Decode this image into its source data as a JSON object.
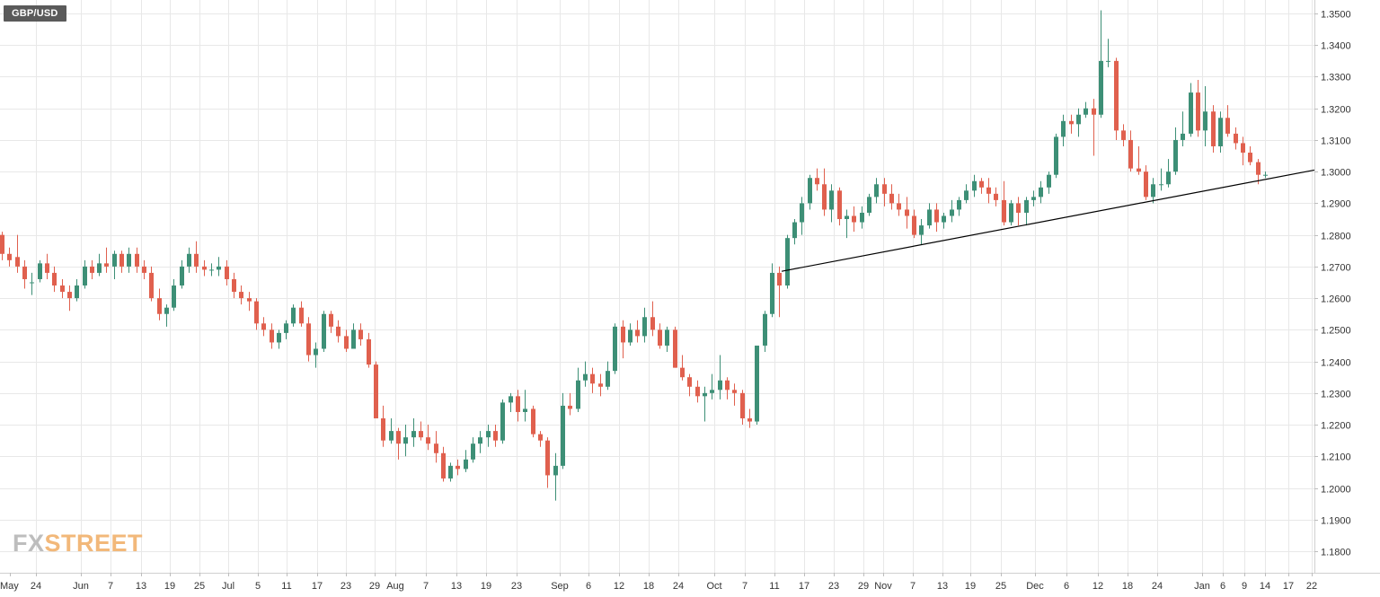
{
  "chart_data": {
    "type": "candlestick",
    "symbol": "GBP/USD",
    "watermark": {
      "part1": "FX",
      "part2": "STREET"
    },
    "y_axis": {
      "range": [
        1.172,
        1.3535
      ],
      "ticks": [
        "1.1800",
        "1.1900",
        "1.2000",
        "1.2100",
        "1.2200",
        "1.2300",
        "1.2400",
        "1.2500",
        "1.2600",
        "1.2700",
        "1.2800",
        "1.2900",
        "1.3000",
        "1.3100",
        "1.3200",
        "1.3300",
        "1.3400",
        "1.3500"
      ]
    },
    "x_axis": {
      "labels": [
        "May",
        "24",
        "Jun",
        "7",
        "13",
        "19",
        "25",
        "Jul",
        "5",
        "11",
        "17",
        "23",
        "29",
        "Aug",
        "7",
        "13",
        "19",
        "23",
        "Sep",
        "6",
        "12",
        "18",
        "24",
        "Oct",
        "7",
        "11",
        "17",
        "23",
        "29",
        "Nov",
        "7",
        "13",
        "19",
        "25",
        "Dec",
        "6",
        "12",
        "18",
        "24",
        "Jan",
        "6",
        "9",
        "14",
        "17",
        "22"
      ]
    },
    "colors": {
      "up": "#3d8f76",
      "down": "#e0604e",
      "grid": "#e8e8e8",
      "axis_text": "#333333",
      "trendline": "#000000"
    },
    "grid": true,
    "trendline": {
      "from": [
        "Oct 12",
        1.2685
      ],
      "to": [
        "Jan 22",
        1.3005
      ]
    },
    "candles": [
      [
        1.28,
        1.281,
        1.272,
        1.274
      ],
      [
        1.274,
        1.276,
        1.27,
        1.272
      ],
      [
        1.273,
        1.28,
        1.268,
        1.27
      ],
      [
        1.27,
        1.272,
        1.263,
        1.266
      ],
      [
        1.265,
        1.268,
        1.261,
        1.265
      ],
      [
        1.266,
        1.272,
        1.265,
        1.271
      ],
      [
        1.271,
        1.274,
        1.266,
        1.268
      ],
      [
        1.268,
        1.27,
        1.262,
        1.264
      ],
      [
        1.264,
        1.266,
        1.26,
        1.262
      ],
      [
        1.262,
        1.264,
        1.256,
        1.26
      ],
      [
        1.26,
        1.266,
        1.259,
        1.264
      ],
      [
        1.264,
        1.272,
        1.263,
        1.27
      ],
      [
        1.27,
        1.272,
        1.266,
        1.268
      ],
      [
        1.268,
        1.274,
        1.267,
        1.271
      ],
      [
        1.271,
        1.276,
        1.268,
        1.27
      ],
      [
        1.27,
        1.275,
        1.266,
        1.274
      ],
      [
        1.274,
        1.275,
        1.268,
        1.27
      ],
      [
        1.27,
        1.276,
        1.268,
        1.274
      ],
      [
        1.274,
        1.276,
        1.268,
        1.27
      ],
      [
        1.27,
        1.272,
        1.266,
        1.268
      ],
      [
        1.268,
        1.27,
        1.259,
        1.26
      ],
      [
        1.26,
        1.263,
        1.253,
        1.255
      ],
      [
        1.255,
        1.258,
        1.251,
        1.257
      ],
      [
        1.257,
        1.266,
        1.256,
        1.264
      ],
      [
        1.264,
        1.272,
        1.263,
        1.27
      ],
      [
        1.27,
        1.276,
        1.268,
        1.274
      ],
      [
        1.274,
        1.278,
        1.268,
        1.27
      ],
      [
        1.27,
        1.272,
        1.267,
        1.269
      ],
      [
        1.269,
        1.271,
        1.267,
        1.269
      ],
      [
        1.269,
        1.273,
        1.267,
        1.27
      ],
      [
        1.27,
        1.272,
        1.264,
        1.266
      ],
      [
        1.266,
        1.268,
        1.26,
        1.262
      ],
      [
        1.262,
        1.264,
        1.258,
        1.26
      ],
      [
        1.26,
        1.262,
        1.256,
        1.259
      ],
      [
        1.259,
        1.26,
        1.25,
        1.252
      ],
      [
        1.252,
        1.254,
        1.248,
        1.25
      ],
      [
        1.25,
        1.252,
        1.244,
        1.246
      ],
      [
        1.246,
        1.25,
        1.244,
        1.249
      ],
      [
        1.249,
        1.253,
        1.247,
        1.252
      ],
      [
        1.252,
        1.258,
        1.251,
        1.257
      ],
      [
        1.257,
        1.259,
        1.251,
        1.252
      ],
      [
        1.252,
        1.254,
        1.24,
        1.242
      ],
      [
        1.242,
        1.246,
        1.238,
        1.244
      ],
      [
        1.244,
        1.256,
        1.243,
        1.255
      ],
      [
        1.255,
        1.256,
        1.249,
        1.251
      ],
      [
        1.251,
        1.253,
        1.246,
        1.248
      ],
      [
        1.248,
        1.25,
        1.243,
        1.244
      ],
      [
        1.244,
        1.252,
        1.244,
        1.25
      ],
      [
        1.25,
        1.252,
        1.245,
        1.247
      ],
      [
        1.247,
        1.249,
        1.238,
        1.239
      ],
      [
        1.239,
        1.24,
        1.222,
        1.222
      ],
      [
        1.222,
        1.226,
        1.213,
        1.215
      ],
      [
        1.215,
        1.222,
        1.214,
        1.218
      ],
      [
        1.218,
        1.219,
        1.209,
        1.214
      ],
      [
        1.214,
        1.22,
        1.21,
        1.216
      ],
      [
        1.216,
        1.222,
        1.213,
        1.218
      ],
      [
        1.218,
        1.221,
        1.215,
        1.216
      ],
      [
        1.216,
        1.22,
        1.212,
        1.214
      ],
      [
        1.214,
        1.218,
        1.208,
        1.211
      ],
      [
        1.211,
        1.213,
        1.202,
        1.203
      ],
      [
        1.203,
        1.208,
        1.202,
        1.207
      ],
      [
        1.207,
        1.209,
        1.204,
        1.206
      ],
      [
        1.206,
        1.212,
        1.205,
        1.209
      ],
      [
        1.209,
        1.216,
        1.208,
        1.214
      ],
      [
        1.214,
        1.218,
        1.211,
        1.216
      ],
      [
        1.216,
        1.22,
        1.213,
        1.218
      ],
      [
        1.218,
        1.22,
        1.213,
        1.215
      ],
      [
        1.215,
        1.228,
        1.214,
        1.227
      ],
      [
        1.227,
        1.23,
        1.224,
        1.229
      ],
      [
        1.229,
        1.231,
        1.221,
        1.224
      ],
      [
        1.224,
        1.231,
        1.221,
        1.225
      ],
      [
        1.225,
        1.226,
        1.216,
        1.217
      ],
      [
        1.217,
        1.218,
        1.213,
        1.215
      ],
      [
        1.215,
        1.216,
        1.2,
        1.204
      ],
      [
        1.204,
        1.211,
        1.196,
        1.207
      ],
      [
        1.207,
        1.23,
        1.206,
        1.226
      ],
      [
        1.226,
        1.23,
        1.223,
        1.225
      ],
      [
        1.225,
        1.238,
        1.224,
        1.234
      ],
      [
        1.234,
        1.24,
        1.232,
        1.236
      ],
      [
        1.236,
        1.238,
        1.23,
        1.233
      ],
      [
        1.233,
        1.236,
        1.229,
        1.232
      ],
      [
        1.232,
        1.24,
        1.231,
        1.237
      ],
      [
        1.237,
        1.252,
        1.236,
        1.251
      ],
      [
        1.251,
        1.253,
        1.241,
        1.246
      ],
      [
        1.246,
        1.252,
        1.245,
        1.25
      ],
      [
        1.25,
        1.253,
        1.246,
        1.248
      ],
      [
        1.248,
        1.257,
        1.246,
        1.254
      ],
      [
        1.254,
        1.259,
        1.248,
        1.25
      ],
      [
        1.25,
        1.252,
        1.244,
        1.245
      ],
      [
        1.245,
        1.251,
        1.243,
        1.25
      ],
      [
        1.25,
        1.251,
        1.238,
        1.238
      ],
      [
        1.238,
        1.242,
        1.234,
        1.235
      ],
      [
        1.235,
        1.236,
        1.229,
        1.232
      ],
      [
        1.232,
        1.234,
        1.227,
        1.229
      ],
      [
        1.229,
        1.232,
        1.221,
        1.23
      ],
      [
        1.23,
        1.236,
        1.228,
        1.231
      ],
      [
        1.231,
        1.242,
        1.228,
        1.234
      ],
      [
        1.234,
        1.235,
        1.228,
        1.231
      ],
      [
        1.231,
        1.233,
        1.226,
        1.23
      ],
      [
        1.23,
        1.231,
        1.22,
        1.222
      ],
      [
        1.222,
        1.225,
        1.219,
        1.221
      ],
      [
        1.221,
        1.245,
        1.22,
        1.245
      ],
      [
        1.245,
        1.256,
        1.243,
        1.255
      ],
      [
        1.255,
        1.271,
        1.254,
        1.268
      ],
      [
        1.268,
        1.27,
        1.254,
        1.264
      ],
      [
        1.264,
        1.28,
        1.263,
        1.279
      ],
      [
        1.279,
        1.285,
        1.277,
        1.284
      ],
      [
        1.284,
        1.292,
        1.28,
        1.29
      ],
      [
        1.29,
        1.299,
        1.288,
        1.298
      ],
      [
        1.298,
        1.301,
        1.294,
        1.296
      ],
      [
        1.296,
        1.301,
        1.286,
        1.288
      ],
      [
        1.288,
        1.296,
        1.284,
        1.294
      ],
      [
        1.294,
        1.295,
        1.283,
        1.285
      ],
      [
        1.285,
        1.288,
        1.279,
        1.286
      ],
      [
        1.286,
        1.289,
        1.281,
        1.284
      ],
      [
        1.284,
        1.289,
        1.282,
        1.287
      ],
      [
        1.287,
        1.293,
        1.286,
        1.292
      ],
      [
        1.292,
        1.298,
        1.29,
        1.296
      ],
      [
        1.296,
        1.298,
        1.289,
        1.293
      ],
      [
        1.293,
        1.296,
        1.288,
        1.29
      ],
      [
        1.29,
        1.293,
        1.286,
        1.288
      ],
      [
        1.288,
        1.292,
        1.282,
        1.286
      ],
      [
        1.286,
        1.288,
        1.279,
        1.28
      ],
      [
        1.28,
        1.285,
        1.277,
        1.283
      ],
      [
        1.283,
        1.29,
        1.282,
        1.288
      ],
      [
        1.288,
        1.29,
        1.281,
        1.284
      ],
      [
        1.284,
        1.287,
        1.282,
        1.286
      ],
      [
        1.286,
        1.291,
        1.284,
        1.288
      ],
      [
        1.288,
        1.292,
        1.286,
        1.291
      ],
      [
        1.291,
        1.296,
        1.29,
        1.294
      ],
      [
        1.294,
        1.299,
        1.292,
        1.297
      ],
      [
        1.297,
        1.298,
        1.293,
        1.295
      ],
      [
        1.295,
        1.298,
        1.29,
        1.293
      ],
      [
        1.293,
        1.295,
        1.289,
        1.291
      ],
      [
        1.291,
        1.297,
        1.283,
        1.284
      ],
      [
        1.284,
        1.291,
        1.283,
        1.29
      ],
      [
        1.29,
        1.292,
        1.283,
        1.287
      ],
      [
        1.287,
        1.292,
        1.283,
        1.291
      ],
      [
        1.291,
        1.294,
        1.289,
        1.292
      ],
      [
        1.292,
        1.297,
        1.29,
        1.295
      ],
      [
        1.295,
        1.3,
        1.293,
        1.299
      ],
      [
        1.299,
        1.312,
        1.298,
        1.311
      ],
      [
        1.311,
        1.318,
        1.308,
        1.316
      ],
      [
        1.316,
        1.318,
        1.312,
        1.315
      ],
      [
        1.315,
        1.32,
        1.311,
        1.318
      ],
      [
        1.318,
        1.322,
        1.317,
        1.32
      ],
      [
        1.32,
        1.323,
        1.305,
        1.318
      ],
      [
        1.318,
        1.351,
        1.317,
        1.335
      ],
      [
        1.335,
        1.342,
        1.333,
        1.335
      ],
      [
        1.335,
        1.336,
        1.31,
        1.313
      ],
      [
        1.313,
        1.315,
        1.308,
        1.31
      ],
      [
        1.31,
        1.313,
        1.3,
        1.301
      ],
      [
        1.301,
        1.308,
        1.299,
        1.3
      ],
      [
        1.3,
        1.302,
        1.291,
        1.292
      ],
      [
        1.292,
        1.298,
        1.29,
        1.296
      ],
      [
        1.296,
        1.301,
        1.294,
        1.296
      ],
      [
        1.296,
        1.304,
        1.295,
        1.3
      ],
      [
        1.3,
        1.314,
        1.299,
        1.31
      ],
      [
        1.31,
        1.319,
        1.308,
        1.312
      ],
      [
        1.312,
        1.328,
        1.311,
        1.325
      ],
      [
        1.325,
        1.329,
        1.311,
        1.313
      ],
      [
        1.313,
        1.327,
        1.308,
        1.319
      ],
      [
        1.319,
        1.321,
        1.306,
        1.308
      ],
      [
        1.308,
        1.319,
        1.306,
        1.317
      ],
      [
        1.317,
        1.321,
        1.311,
        1.312
      ],
      [
        1.312,
        1.314,
        1.307,
        1.309
      ],
      [
        1.309,
        1.311,
        1.302,
        1.306
      ],
      [
        1.306,
        1.308,
        1.302,
        1.303
      ],
      [
        1.303,
        1.304,
        1.296,
        1.299
      ],
      [
        1.299,
        1.3,
        1.298,
        1.299
      ]
    ]
  }
}
